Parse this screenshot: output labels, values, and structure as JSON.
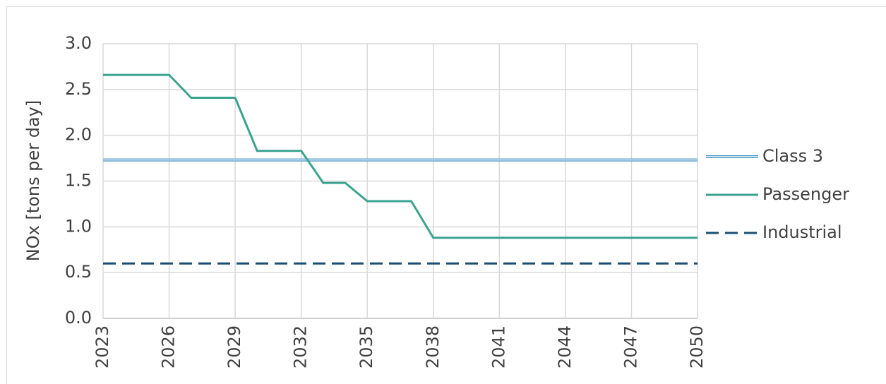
{
  "chart_data": {
    "type": "line",
    "y_label": "NOx [tons per day]",
    "x": [
      2023,
      2024,
      2025,
      2026,
      2027,
      2028,
      2029,
      2030,
      2031,
      2032,
      2033,
      2034,
      2035,
      2036,
      2037,
      2038,
      2039,
      2040,
      2041,
      2042,
      2043,
      2044,
      2045,
      2046,
      2047,
      2048,
      2049,
      2050
    ],
    "series": [
      {
        "name": "Class 3",
        "color": "#3a8fc7",
        "style": "double",
        "values": [
          1.73,
          1.73,
          1.73,
          1.73,
          1.73,
          1.73,
          1.73,
          1.73,
          1.73,
          1.73,
          1.73,
          1.73,
          1.73,
          1.73,
          1.73,
          1.73,
          1.73,
          1.73,
          1.73,
          1.73,
          1.73,
          1.73,
          1.73,
          1.73,
          1.73,
          1.73,
          1.73,
          1.73
        ]
      },
      {
        "name": "Passenger",
        "color": "#3aa390",
        "style": "solid",
        "values": [
          2.66,
          2.66,
          2.66,
          2.66,
          2.41,
          2.41,
          2.41,
          1.83,
          1.83,
          1.83,
          1.48,
          1.48,
          1.28,
          1.28,
          1.28,
          0.88,
          0.88,
          0.88,
          0.88,
          0.88,
          0.88,
          0.88,
          0.88,
          0.88,
          0.88,
          0.88,
          0.88,
          0.88
        ]
      },
      {
        "name": "Industrial",
        "color": "#1b4f72",
        "style": "dashed",
        "values": [
          0.6,
          0.6,
          0.6,
          0.6,
          0.6,
          0.6,
          0.6,
          0.6,
          0.6,
          0.6,
          0.6,
          0.6,
          0.6,
          0.6,
          0.6,
          0.6,
          0.6,
          0.6,
          0.6,
          0.6,
          0.6,
          0.6,
          0.6,
          0.6,
          0.6,
          0.6,
          0.6,
          0.6
        ]
      }
    ],
    "xlim": [
      2023,
      2050
    ],
    "xticks": [
      2023,
      2026,
      2029,
      2032,
      2035,
      2038,
      2041,
      2044,
      2047,
      2050
    ],
    "ylim": [
      0,
      3
    ],
    "yticks": [
      {
        "value": 0,
        "label": "0.0"
      },
      {
        "value": 0.5,
        "label": "0.5"
      },
      {
        "value": 1,
        "label": "1.0"
      },
      {
        "value": 1.5,
        "label": "1.5"
      },
      {
        "value": 2,
        "label": "2.0"
      },
      {
        "value": 2.5,
        "label": "2.5"
      },
      {
        "value": 3,
        "label": "3.0"
      }
    ],
    "grid": true,
    "legend": "right"
  }
}
